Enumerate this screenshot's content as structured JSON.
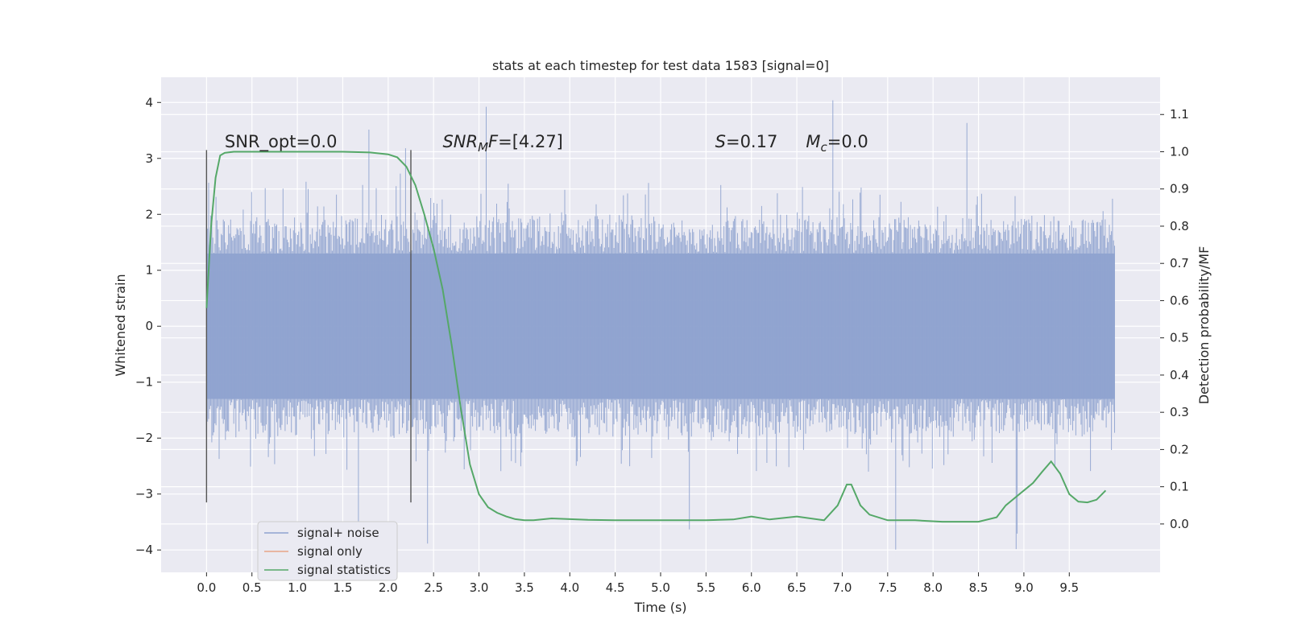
{
  "chart_data": {
    "type": "line",
    "title": "stats at each timestep for test data 1583 [signal=0]",
    "xlabel": "Time (s)",
    "ylabel": "Whitened strain",
    "y2label": "Detection probability/MF",
    "xlim": [
      -0.5,
      10.5
    ],
    "ylim": [
      -4.4,
      4.45
    ],
    "y2lim": [
      -0.13,
      1.2
    ],
    "xticks": [
      0.0,
      0.5,
      1.0,
      1.5,
      2.0,
      2.5,
      3.0,
      3.5,
      4.0,
      4.5,
      5.0,
      5.5,
      6.0,
      6.5,
      7.0,
      7.5,
      8.0,
      8.5,
      9.0,
      9.5
    ],
    "xtick_labels": [
      "0.0",
      "0.5",
      "1.0",
      "1.5",
      "2.0",
      "2.5",
      "3.0",
      "3.5",
      "4.0",
      "4.5",
      "5.0",
      "5.5",
      "6.0",
      "6.5",
      "7.0",
      "7.5",
      "8.0",
      "8.5",
      "9.0",
      "9.5"
    ],
    "yticks": [
      4,
      3,
      2,
      1,
      0,
      -1,
      -2,
      -3,
      -4
    ],
    "ytick_labels": [
      "4",
      "3",
      "2",
      "1",
      "0",
      "−1",
      "−2",
      "−3",
      "−4"
    ],
    "y2ticks": [
      1.1,
      1.0,
      0.9,
      0.8,
      0.7,
      0.6,
      0.5,
      0.4,
      0.3,
      0.2,
      0.1,
      0.0
    ],
    "y2tick_labels": [
      "1.1",
      "1.0",
      "0.9",
      "0.8",
      "0.7",
      "0.6",
      "0.5",
      "0.4",
      "0.3",
      "0.2",
      "0.1",
      "0.0"
    ],
    "grid": true,
    "legend_position": "lower-left",
    "noise_band": {
      "x_range": [
        0.0,
        10.0
      ],
      "core": [
        -1.3,
        1.3
      ],
      "typical": [
        -2.0,
        2.0
      ],
      "extremes": [
        -4.05,
        4.05
      ]
    },
    "series": [
      {
        "name": "signal+ noise",
        "color": "#8fa3cf",
        "values_summary": "noise fluctuating roughly between -4.05 and 4.05"
      },
      {
        "name": "signal only",
        "color": "#e8a487",
        "values": []
      },
      {
        "name": "signal statistics",
        "color": "#55a868",
        "axis": "right",
        "x": [
          0.0,
          0.05,
          0.1,
          0.15,
          0.2,
          0.3,
          0.5,
          1.0,
          1.5,
          1.8,
          2.0,
          2.1,
          2.2,
          2.3,
          2.4,
          2.5,
          2.6,
          2.7,
          2.8,
          2.9,
          3.0,
          3.1,
          3.2,
          3.3,
          3.4,
          3.5,
          3.6,
          3.8,
          4.0,
          4.2,
          4.5,
          5.0,
          5.5,
          5.8,
          6.0,
          6.2,
          6.5,
          6.8,
          6.95,
          7.05,
          7.1,
          7.2,
          7.3,
          7.5,
          7.8,
          8.1,
          8.5,
          8.7,
          8.8,
          9.0,
          9.1,
          9.2,
          9.3,
          9.4,
          9.5,
          9.6,
          9.7,
          9.8,
          9.9
        ],
        "values": [
          0.58,
          0.8,
          0.93,
          0.99,
          0.997,
          1.0,
          1.0,
          1.0,
          1.0,
          0.998,
          0.993,
          0.985,
          0.96,
          0.91,
          0.83,
          0.74,
          0.63,
          0.48,
          0.31,
          0.16,
          0.08,
          0.045,
          0.03,
          0.02,
          0.013,
          0.01,
          0.01,
          0.015,
          0.013,
          0.011,
          0.01,
          0.01,
          0.01,
          0.012,
          0.02,
          0.012,
          0.02,
          0.01,
          0.05,
          0.106,
          0.106,
          0.05,
          0.025,
          0.01,
          0.01,
          0.006,
          0.006,
          0.018,
          0.05,
          0.09,
          0.11,
          0.14,
          0.168,
          0.135,
          0.08,
          0.06,
          0.058,
          0.065,
          0.09
        ]
      }
    ],
    "vlines": [
      0.0,
      2.25
    ],
    "annotations": [
      {
        "text": "SNR_opt=0.0",
        "x": 0.2,
        "y": 3.3
      },
      {
        "base": "SNR",
        "sub": "M",
        "tail": "F=[4.27]",
        "x": 2.6,
        "y": 3.3
      },
      {
        "base": "S",
        "tail": "=0.17",
        "x": 5.6,
        "y": 3.3
      },
      {
        "base": "M",
        "sub": "c",
        "tail": "=0.0",
        "x": 6.6,
        "y": 3.3
      }
    ],
    "legend": [
      "signal+ noise",
      "signal only",
      "signal statistics"
    ]
  }
}
